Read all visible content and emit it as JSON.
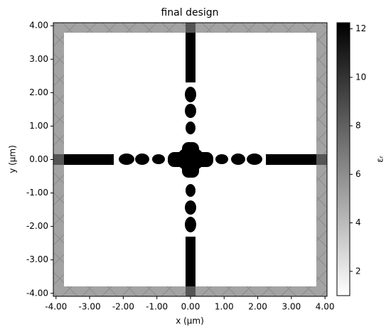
{
  "chart_data": {
    "type": "image",
    "title": "final design",
    "x_label": "x (μm)",
    "y_label": "y (μm)",
    "xlim": [
      -4.08,
      4.06
    ],
    "ylim": [
      -4.09,
      4.09
    ],
    "xticks": [
      {
        "value": -4,
        "label": "-4.00"
      },
      {
        "value": -3,
        "label": "-3.00"
      },
      {
        "value": -2,
        "label": "-2.00"
      },
      {
        "value": -1,
        "label": "-1.00"
      },
      {
        "value": 0,
        "label": "0.00"
      },
      {
        "value": 1,
        "label": "1.00"
      },
      {
        "value": 2,
        "label": "2.00"
      },
      {
        "value": 3,
        "label": "3.00"
      },
      {
        "value": 4,
        "label": "4.00"
      }
    ],
    "yticks": [
      {
        "value": -4,
        "label": "-4.00"
      },
      {
        "value": -3,
        "label": "-3.00"
      },
      {
        "value": -2,
        "label": "-2.00"
      },
      {
        "value": -1,
        "label": "-1.00"
      },
      {
        "value": 0,
        "label": "0.00"
      },
      {
        "value": 1,
        "label": "1.00"
      },
      {
        "value": 2,
        "label": "2.00"
      },
      {
        "value": 3,
        "label": "3.00"
      },
      {
        "value": 4,
        "label": "4.00"
      }
    ],
    "colorbar": {
      "label": "εᵣ",
      "colormap": [
        "#ffffff",
        "#000000"
      ],
      "clim": [
        1,
        12.25
      ],
      "ticks": [
        2,
        4,
        6,
        8,
        10,
        12
      ]
    }
  }
}
